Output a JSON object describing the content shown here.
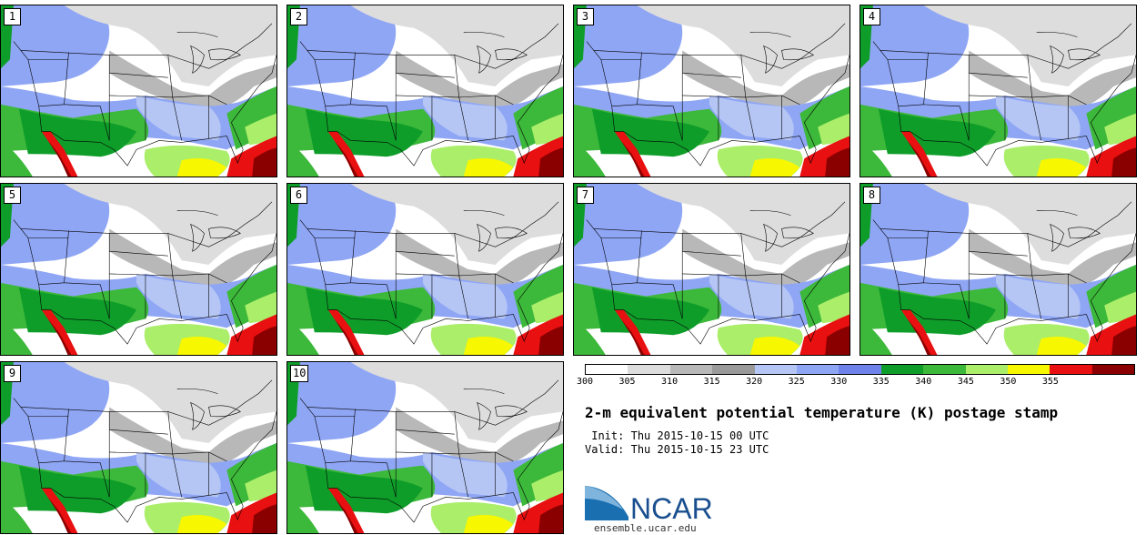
{
  "panels": [
    "1",
    "2",
    "3",
    "4",
    "5",
    "6",
    "7",
    "8",
    "9",
    "10"
  ],
  "colorbar": {
    "ticks": [
      "300",
      "305",
      "310",
      "315",
      "320",
      "325",
      "330",
      "335",
      "340",
      "345",
      "350",
      "355"
    ],
    "colors": [
      "#ffffff",
      "#dddddd",
      "#b8b8b8",
      "#9a9a9a",
      "#b5c6f5",
      "#8fa6f5",
      "#6f82ea",
      "#0f9d2a",
      "#3cb83a",
      "#aaee6a",
      "#f7f700",
      "#e81010",
      "#8a0000"
    ]
  },
  "title": "2-m equivalent potential temperature (K) postage stamp",
  "init_label": " Init:",
  "init_value": "Thu 2015-10-15 00 UTC",
  "valid_label": "Valid:",
  "valid_value": "Thu 2015-10-15 23 UTC",
  "logo_text": "NCAR",
  "site": "ensemble.ucar.edu"
}
